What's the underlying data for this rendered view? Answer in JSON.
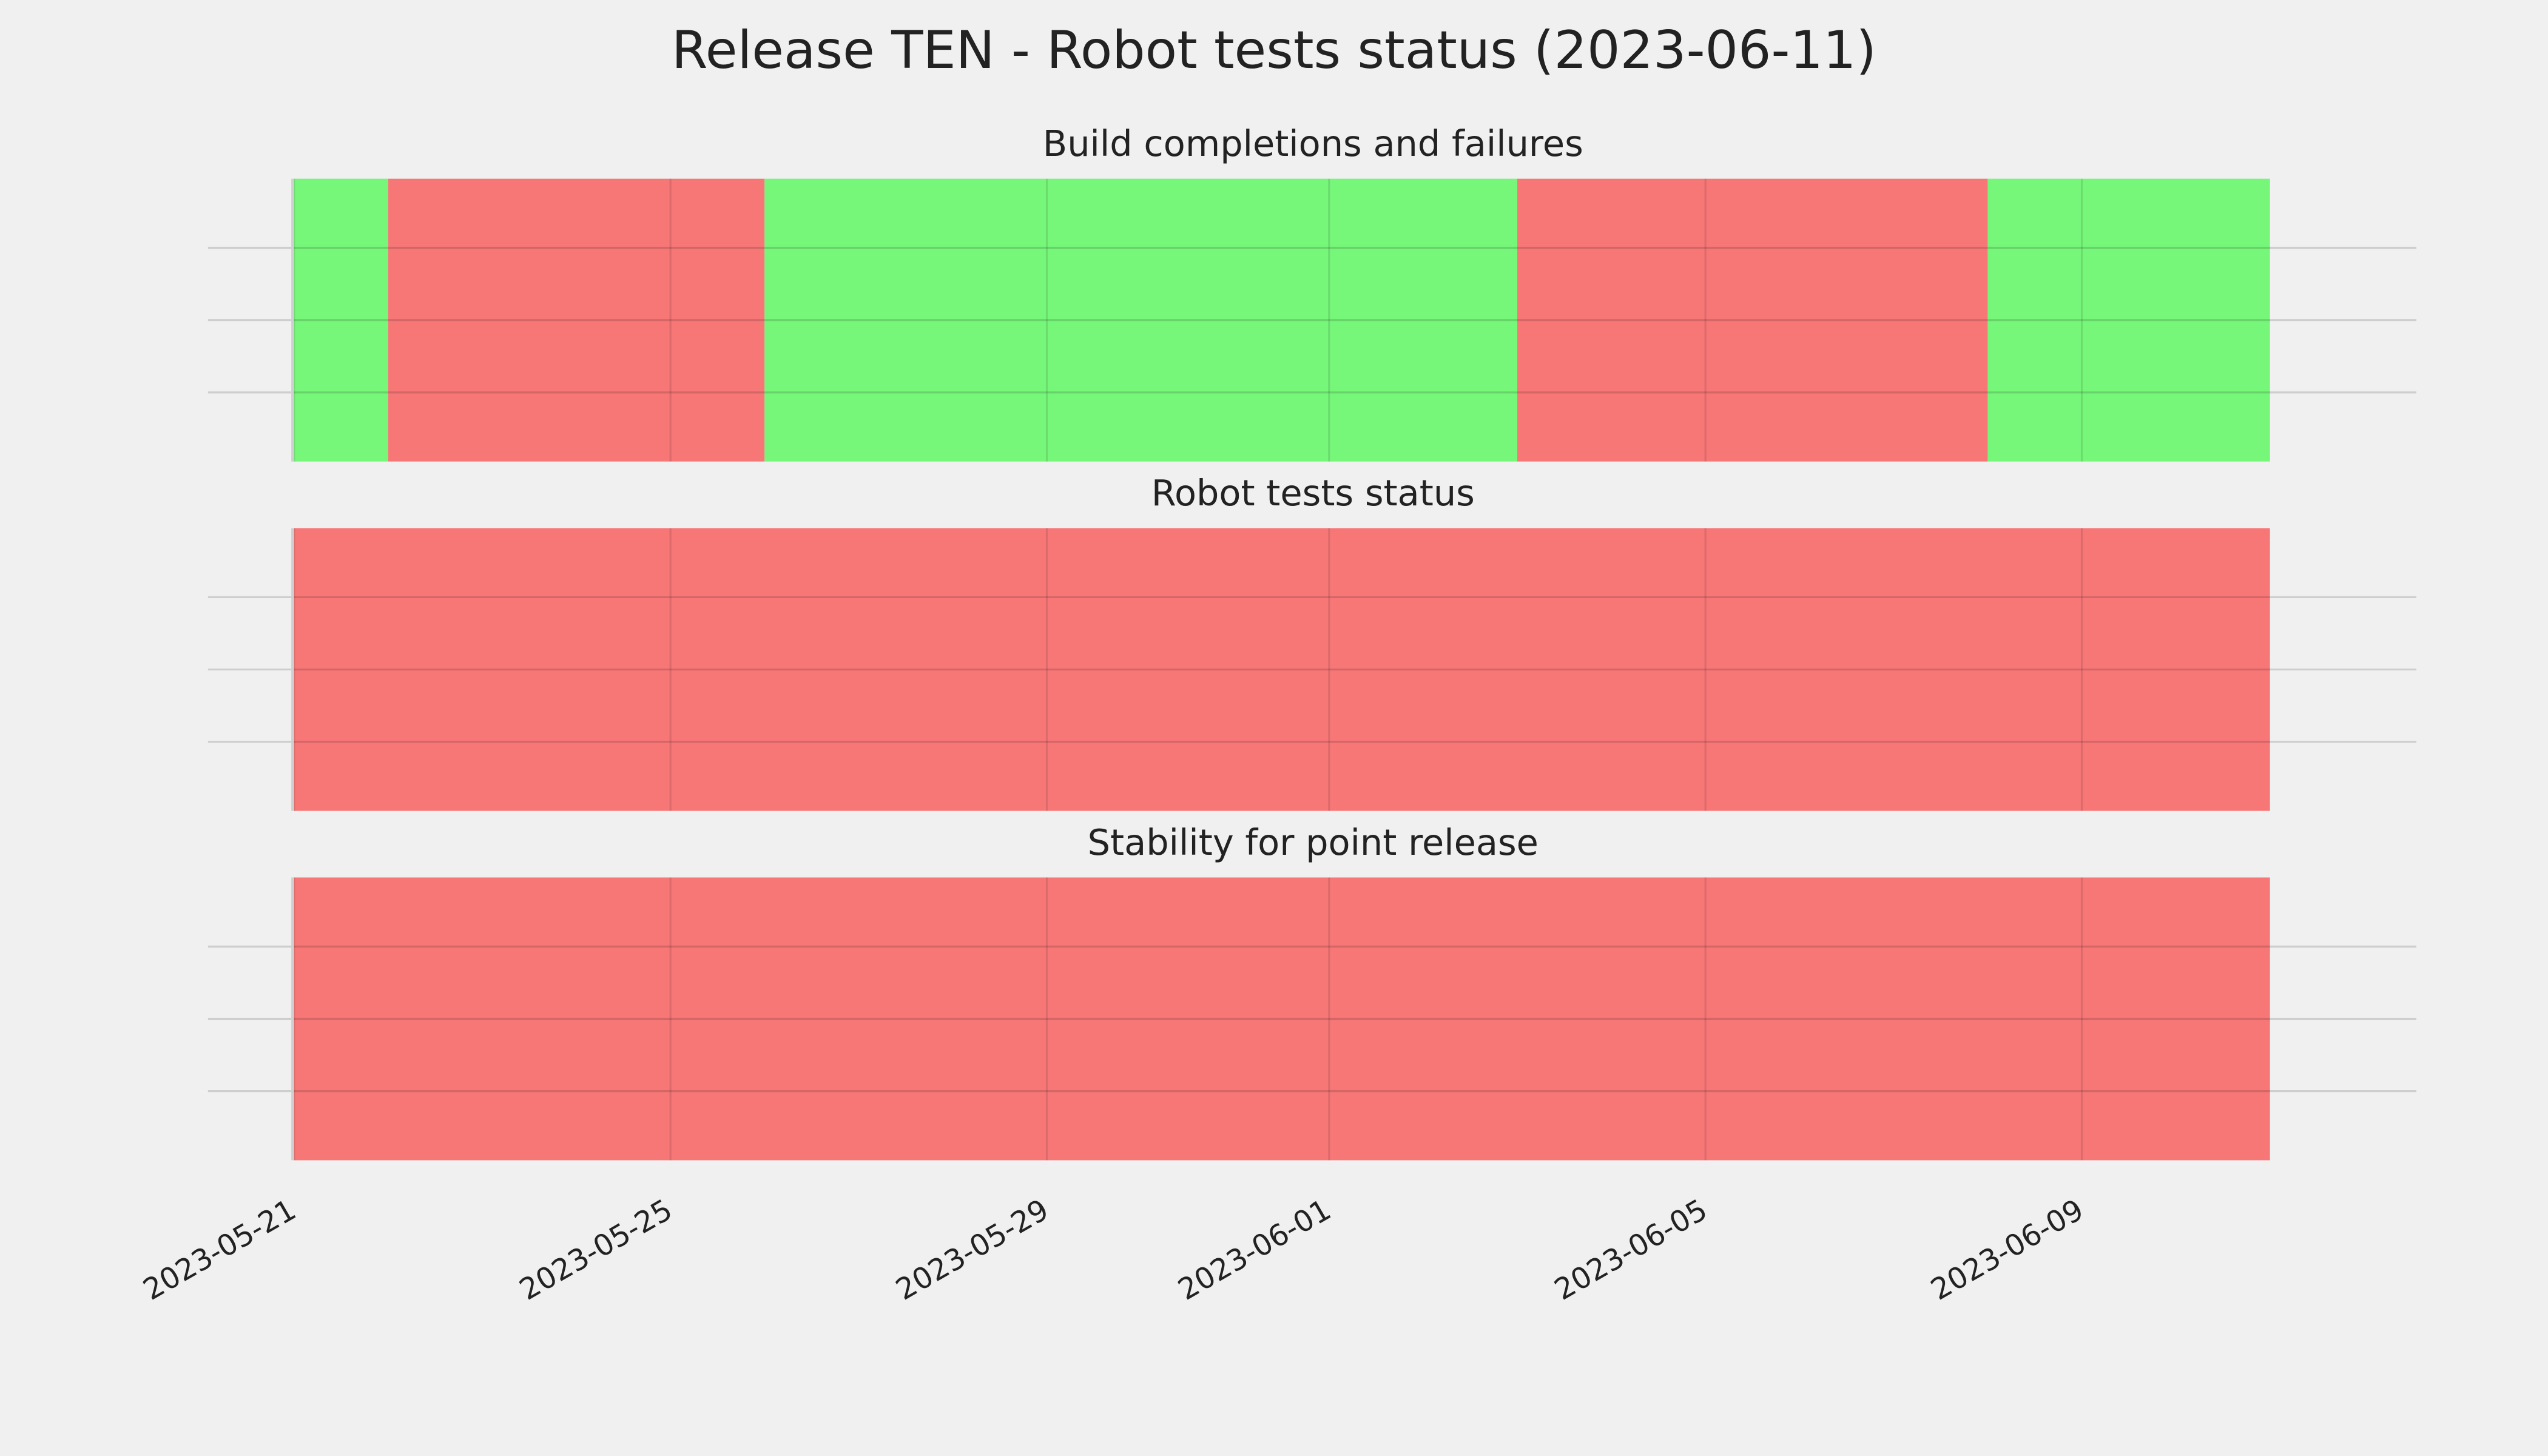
{
  "title": "Release TEN - Robot tests status (2023-06-11)",
  "chart_data": [
    {
      "type": "timeline",
      "title": "Build completions and failures",
      "xlim": [
        "2023-05-21",
        "2023-06-13"
      ],
      "xticks": [
        "2023-05-21",
        "2023-05-25",
        "2023-05-29",
        "2023-06-01",
        "2023-06-05",
        "2023-06-09"
      ],
      "segments": [
        {
          "start": "2023-05-21",
          "end": "2023-05-22",
          "color": "#77f77a"
        },
        {
          "start": "2023-05-22",
          "end": "2023-05-26",
          "color": "#f77777"
        },
        {
          "start": "2023-05-26",
          "end": "2023-06-03",
          "color": "#77f77a"
        },
        {
          "start": "2023-06-03",
          "end": "2023-06-08",
          "color": "#f77777"
        },
        {
          "start": "2023-06-08",
          "end": "2023-06-11",
          "color": "#77f77a"
        }
      ]
    },
    {
      "type": "timeline",
      "title": "Robot tests status",
      "xlim": [
        "2023-05-21",
        "2023-06-13"
      ],
      "xticks": [
        "2023-05-21",
        "2023-05-25",
        "2023-05-29",
        "2023-06-01",
        "2023-06-05",
        "2023-06-09"
      ],
      "segments": [
        {
          "start": "2023-05-21",
          "end": "2023-06-11",
          "color": "#f77777"
        }
      ]
    },
    {
      "type": "timeline",
      "title": "Stability for point release",
      "xlim": [
        "2023-05-21",
        "2023-06-13"
      ],
      "xticks": [
        "2023-05-21",
        "2023-05-25",
        "2023-05-29",
        "2023-06-01",
        "2023-06-05",
        "2023-06-09"
      ],
      "segments": [
        {
          "start": "2023-05-21",
          "end": "2023-06-11",
          "color": "#f77777"
        }
      ]
    }
  ]
}
